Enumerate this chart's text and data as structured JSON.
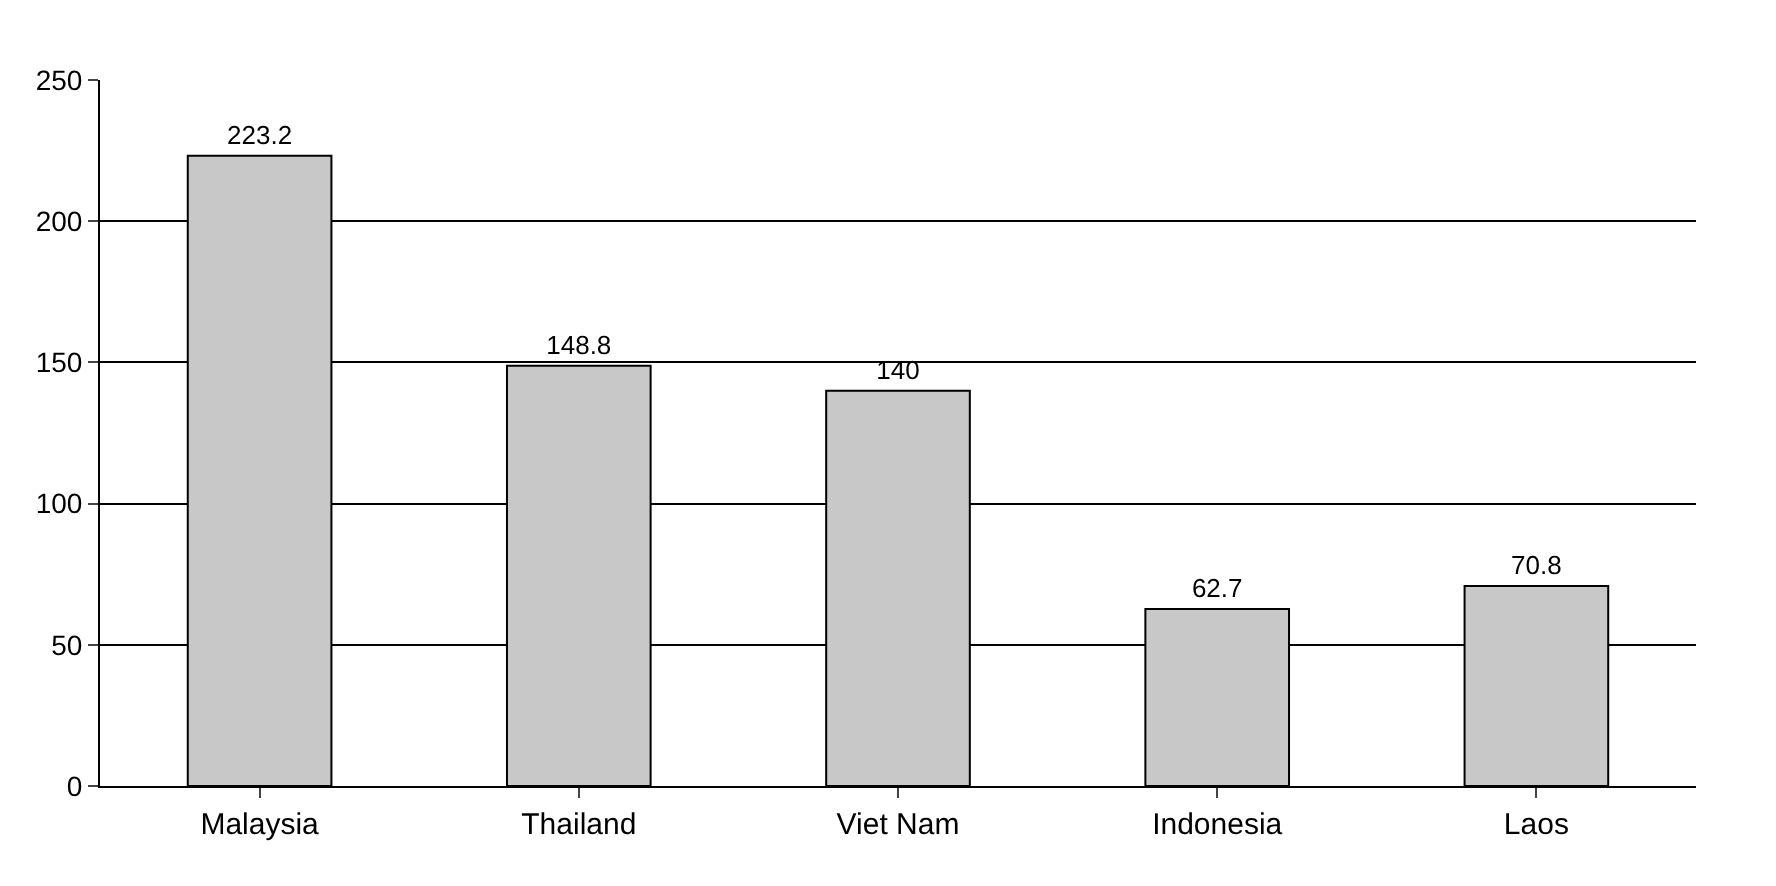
{
  "chart_data": {
    "type": "bar",
    "categories": [
      "Malaysia",
      "Thailand",
      "Viet Nam",
      "Indonesia",
      "Laos"
    ],
    "values": [
      223.2,
      148.8,
      140,
      62.7,
      70.8
    ],
    "color": "#c8c8c8",
    "ylim": [
      0,
      250
    ],
    "yticks": [
      0,
      50,
      100,
      150,
      200,
      250
    ],
    "grid": "y",
    "data_labels": true
  }
}
